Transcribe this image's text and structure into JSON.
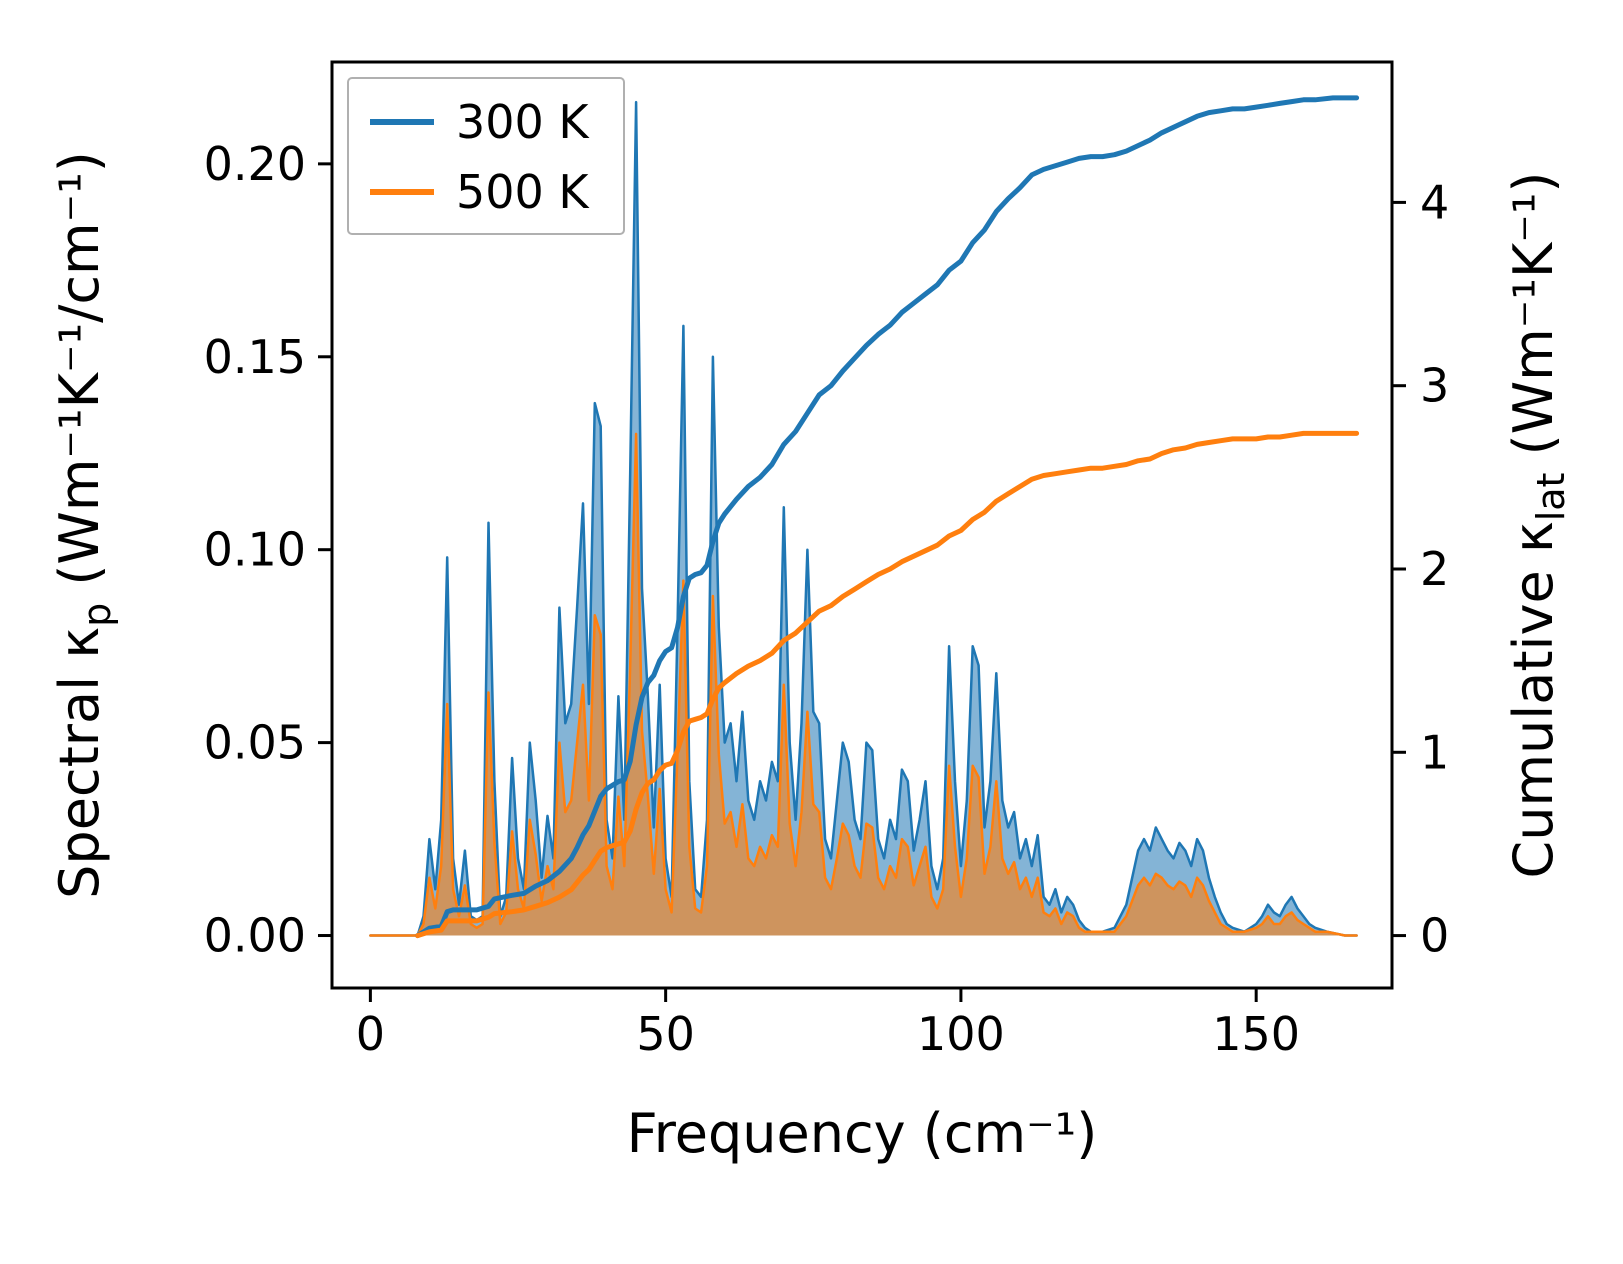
{
  "chart_data": {
    "type": "area",
    "title": "",
    "grid": false,
    "legend_position": "upper left",
    "axes": {
      "x": {
        "label": "Frequency (cm⁻¹)",
        "ticks": [
          0,
          50,
          100,
          150
        ],
        "tick_labels": [
          "0",
          "50",
          "100",
          "150"
        ],
        "lim": [
          -6.5,
          173
        ]
      },
      "y_left": {
        "label": "Spectral κ_p (Wm⁻¹K⁻¹/cm⁻¹)",
        "label_prefix": "Spectral κ",
        "label_sub": "p",
        "label_suffix": " (Wm⁻¹K⁻¹/cm⁻¹)",
        "ticks": [
          0,
          0.05,
          0.1,
          0.15,
          0.2
        ],
        "tick_labels": [
          "0.00",
          "0.05",
          "0.10",
          "0.15",
          "0.20"
        ],
        "lim": [
          -0.0136,
          0.2264
        ]
      },
      "y_right": {
        "label": "Cumulative κ_lat (Wm⁻¹K⁻¹)",
        "label_prefix": "Cumulative κ",
        "label_sub": "lat",
        "label_suffix": " (Wm⁻¹K⁻¹)",
        "ticks": [
          0,
          1,
          2,
          3,
          4
        ],
        "tick_labels": [
          "0",
          "1",
          "2",
          "3",
          "4"
        ],
        "lim": [
          -0.286,
          4.766
        ]
      }
    },
    "x_spectral": [
      0,
      6,
      8,
      9,
      10,
      11,
      12,
      13,
      14,
      15,
      16,
      17,
      18,
      19,
      20,
      21,
      22,
      23,
      24,
      25,
      26,
      27,
      28,
      29,
      30,
      31,
      32,
      33,
      34,
      35,
      36,
      37,
      38,
      39,
      40,
      41,
      42,
      43,
      44,
      45,
      46,
      47,
      48,
      49,
      50,
      51,
      52,
      53,
      54,
      55,
      56,
      57,
      58,
      59,
      60,
      61,
      62,
      63,
      64,
      65,
      66,
      67,
      68,
      69,
      70,
      71,
      72,
      73,
      74,
      75,
      76,
      77,
      78,
      79,
      80,
      81,
      82,
      83,
      84,
      85,
      86,
      87,
      88,
      89,
      90,
      91,
      92,
      93,
      94,
      95,
      96,
      97,
      98,
      99,
      100,
      101,
      102,
      103,
      104,
      105,
      106,
      107,
      108,
      109,
      110,
      111,
      112,
      113,
      114,
      115,
      116,
      117,
      118,
      119,
      120,
      121,
      122,
      124,
      126,
      128,
      129,
      130,
      131,
      132,
      133,
      134,
      135,
      136,
      137,
      138,
      139,
      140,
      141,
      142,
      143,
      144,
      145,
      146,
      148,
      150,
      151,
      152,
      153,
      154,
      155,
      156,
      157,
      158,
      159,
      160,
      162,
      165,
      167
    ],
    "x_cumulative": [
      8,
      10,
      12,
      13,
      14,
      18,
      20,
      21,
      24,
      26,
      28,
      30,
      32,
      34,
      35,
      36,
      37,
      38,
      39,
      40,
      42,
      43,
      44,
      45,
      46,
      47,
      48,
      49,
      50,
      51,
      52,
      53,
      54,
      55,
      56,
      57,
      58,
      59,
      60,
      62,
      64,
      66,
      68,
      70,
      72,
      74,
      76,
      78,
      80,
      82,
      84,
      86,
      88,
      90,
      92,
      94,
      96,
      98,
      100,
      102,
      104,
      106,
      108,
      110,
      112,
      114,
      116,
      118,
      120,
      122,
      124,
      126,
      128,
      130,
      132,
      134,
      136,
      138,
      140,
      142,
      144,
      146,
      148,
      150,
      152,
      154,
      156,
      158,
      160,
      163,
      167
    ],
    "series": [
      {
        "name": "300 K",
        "color": "#1f77b4",
        "fill_opacity": 0.55,
        "spectral": [
          0,
          0,
          0,
          0.005,
          0.025,
          0.012,
          0.03,
          0.098,
          0.02,
          0.008,
          0.022,
          0.005,
          0.004,
          0.005,
          0.107,
          0.04,
          0.005,
          0.01,
          0.046,
          0.02,
          0.012,
          0.05,
          0.035,
          0.015,
          0.031,
          0.02,
          0.085,
          0.055,
          0.06,
          0.085,
          0.112,
          0.06,
          0.138,
          0.132,
          0.03,
          0.02,
          0.062,
          0.03,
          0.12,
          0.216,
          0.09,
          0.062,
          0.028,
          0.065,
          0.02,
          0.01,
          0.08,
          0.158,
          0.04,
          0.012,
          0.01,
          0.03,
          0.15,
          0.08,
          0.05,
          0.055,
          0.04,
          0.058,
          0.035,
          0.03,
          0.04,
          0.035,
          0.045,
          0.04,
          0.111,
          0.05,
          0.03,
          0.055,
          0.1,
          0.058,
          0.055,
          0.025,
          0.02,
          0.035,
          0.05,
          0.045,
          0.03,
          0.025,
          0.05,
          0.048,
          0.025,
          0.02,
          0.03,
          0.025,
          0.043,
          0.04,
          0.022,
          0.03,
          0.04,
          0.018,
          0.012,
          0.02,
          0.075,
          0.04,
          0.018,
          0.035,
          0.075,
          0.07,
          0.028,
          0.04,
          0.068,
          0.035,
          0.028,
          0.032,
          0.02,
          0.025,
          0.018,
          0.026,
          0.01,
          0.008,
          0.012,
          0.006,
          0.01,
          0.008,
          0.004,
          0.002,
          0.001,
          0.001,
          0.002,
          0.008,
          0.015,
          0.022,
          0.025,
          0.022,
          0.028,
          0.025,
          0.022,
          0.02,
          0.024,
          0.022,
          0.018,
          0.025,
          0.022,
          0.015,
          0.01,
          0.006,
          0.003,
          0.002,
          0.001,
          0.003,
          0.005,
          0.008,
          0.006,
          0.005,
          0.008,
          0.01,
          0.007,
          0.005,
          0.003,
          0.002,
          0.001,
          0,
          0
        ],
        "cumulative": [
          0,
          0.04,
          0.05,
          0.13,
          0.14,
          0.14,
          0.16,
          0.2,
          0.22,
          0.23,
          0.27,
          0.3,
          0.35,
          0.42,
          0.48,
          0.55,
          0.6,
          0.68,
          0.76,
          0.8,
          0.84,
          0.85,
          0.95,
          1.15,
          1.3,
          1.38,
          1.42,
          1.5,
          1.55,
          1.57,
          1.68,
          1.85,
          1.95,
          1.97,
          1.98,
          2.02,
          2.15,
          2.25,
          2.3,
          2.38,
          2.45,
          2.5,
          2.57,
          2.68,
          2.75,
          2.85,
          2.95,
          3.0,
          3.08,
          3.15,
          3.22,
          3.28,
          3.33,
          3.4,
          3.45,
          3.5,
          3.55,
          3.63,
          3.68,
          3.78,
          3.85,
          3.95,
          4.02,
          4.08,
          4.15,
          4.18,
          4.2,
          4.22,
          4.24,
          4.25,
          4.25,
          4.26,
          4.28,
          4.31,
          4.34,
          4.38,
          4.41,
          4.44,
          4.47,
          4.49,
          4.5,
          4.51,
          4.51,
          4.52,
          4.53,
          4.54,
          4.55,
          4.56,
          4.56,
          4.57,
          4.57
        ]
      },
      {
        "name": "500 K",
        "color": "#ff7f0e",
        "fill_opacity": 0.6,
        "spectral": [
          0,
          0,
          0,
          0.003,
          0.015,
          0.007,
          0.018,
          0.06,
          0.012,
          0.005,
          0.013,
          0.003,
          0.002,
          0.003,
          0.063,
          0.024,
          0.003,
          0.006,
          0.027,
          0.012,
          0.007,
          0.03,
          0.021,
          0.009,
          0.018,
          0.012,
          0.05,
          0.032,
          0.035,
          0.05,
          0.065,
          0.035,
          0.083,
          0.078,
          0.018,
          0.012,
          0.036,
          0.018,
          0.07,
          0.13,
          0.053,
          0.036,
          0.016,
          0.038,
          0.012,
          0.006,
          0.047,
          0.092,
          0.023,
          0.007,
          0.006,
          0.018,
          0.088,
          0.047,
          0.029,
          0.032,
          0.023,
          0.034,
          0.02,
          0.018,
          0.023,
          0.02,
          0.026,
          0.023,
          0.065,
          0.029,
          0.018,
          0.032,
          0.058,
          0.034,
          0.032,
          0.015,
          0.012,
          0.02,
          0.029,
          0.026,
          0.018,
          0.015,
          0.029,
          0.028,
          0.015,
          0.012,
          0.018,
          0.015,
          0.025,
          0.023,
          0.013,
          0.018,
          0.023,
          0.01,
          0.007,
          0.012,
          0.044,
          0.023,
          0.01,
          0.02,
          0.044,
          0.041,
          0.016,
          0.023,
          0.04,
          0.02,
          0.016,
          0.019,
          0.012,
          0.015,
          0.01,
          0.015,
          0.006,
          0.005,
          0.007,
          0.003,
          0.006,
          0.005,
          0.002,
          0.001,
          0.001,
          0.001,
          0.001,
          0.005,
          0.009,
          0.013,
          0.015,
          0.013,
          0.016,
          0.015,
          0.013,
          0.012,
          0.014,
          0.013,
          0.01,
          0.015,
          0.013,
          0.009,
          0.006,
          0.003,
          0.002,
          0.001,
          0.001,
          0.002,
          0.003,
          0.005,
          0.003,
          0.003,
          0.005,
          0.006,
          0.004,
          0.003,
          0.002,
          0.001,
          0.001,
          0,
          0
        ],
        "cumulative": [
          0,
          0.02,
          0.03,
          0.08,
          0.08,
          0.08,
          0.1,
          0.12,
          0.13,
          0.14,
          0.16,
          0.18,
          0.21,
          0.25,
          0.29,
          0.33,
          0.36,
          0.41,
          0.46,
          0.48,
          0.5,
          0.51,
          0.57,
          0.69,
          0.78,
          0.83,
          0.85,
          0.9,
          0.93,
          0.94,
          1.01,
          1.11,
          1.17,
          1.18,
          1.19,
          1.21,
          1.29,
          1.35,
          1.38,
          1.43,
          1.47,
          1.5,
          1.54,
          1.61,
          1.65,
          1.71,
          1.77,
          1.8,
          1.85,
          1.89,
          1.93,
          1.97,
          2.0,
          2.04,
          2.07,
          2.1,
          2.13,
          2.18,
          2.21,
          2.27,
          2.31,
          2.37,
          2.41,
          2.45,
          2.49,
          2.51,
          2.52,
          2.53,
          2.54,
          2.55,
          2.55,
          2.56,
          2.57,
          2.59,
          2.6,
          2.63,
          2.65,
          2.66,
          2.68,
          2.69,
          2.7,
          2.71,
          2.71,
          2.71,
          2.72,
          2.72,
          2.73,
          2.74,
          2.74,
          2.74,
          2.74
        ]
      }
    ]
  }
}
